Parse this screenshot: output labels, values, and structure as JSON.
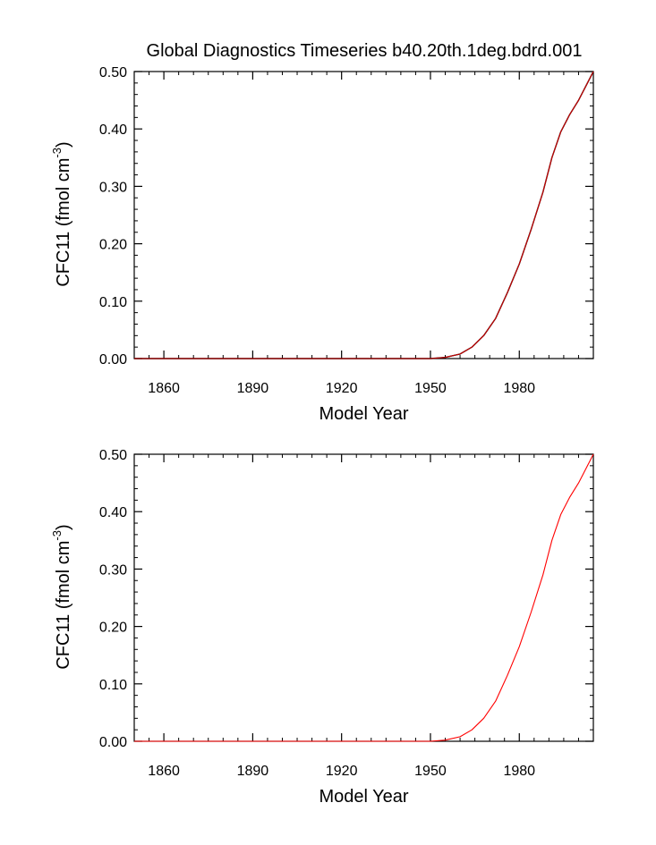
{
  "title": "Global Diagnostics Timeseries b40.20th.1deg.bdrd.001",
  "chart_data": [
    {
      "type": "line",
      "xlabel": "Model Year",
      "ylabel": "CFC11 (fmol cm",
      "ylabel_sup": "-3",
      "ylabel_close": ")",
      "xlim": [
        1850,
        2005
      ],
      "ylim": [
        0,
        0.5
      ],
      "xticks": [
        1860,
        1890,
        1920,
        1950,
        1980
      ],
      "xtick_labels": [
        "1860",
        "1890",
        "1920",
        "1950",
        "1980"
      ],
      "yticks": [
        0,
        0.1,
        0.2,
        0.3,
        0.4,
        0.5
      ],
      "ytick_labels": [
        "0.00",
        "0.10",
        "0.20",
        "0.30",
        "0.40",
        "0.50"
      ],
      "series": [
        {
          "color": "#000000",
          "x": [
            1850,
            1950,
            1955,
            1960,
            1964,
            1968,
            1972,
            1976,
            1980,
            1984,
            1988,
            1991,
            1994,
            1997,
            2000,
            2005
          ],
          "y": [
            0,
            0,
            0.002,
            0.008,
            0.02,
            0.04,
            0.07,
            0.115,
            0.165,
            0.225,
            0.29,
            0.35,
            0.395,
            0.425,
            0.45,
            0.5
          ]
        },
        {
          "color": "#cc0000",
          "x": [
            1850,
            1950,
            1955,
            1960,
            1964,
            1968,
            1972,
            1976,
            1980,
            1984,
            1988,
            1991,
            1994,
            1997,
            2000,
            2005
          ],
          "y": [
            0,
            0,
            0.002,
            0.008,
            0.02,
            0.04,
            0.07,
            0.115,
            0.165,
            0.225,
            0.29,
            0.35,
            0.395,
            0.425,
            0.45,
            0.5
          ]
        }
      ]
    },
    {
      "type": "line",
      "xlabel": "Model Year",
      "ylabel": "CFC11 (fmol cm",
      "ylabel_sup": "-3",
      "ylabel_close": ")",
      "xlim": [
        1850,
        2005
      ],
      "ylim": [
        0,
        0.5
      ],
      "xticks": [
        1860,
        1890,
        1920,
        1950,
        1980
      ],
      "xtick_labels": [
        "1860",
        "1890",
        "1920",
        "1950",
        "1980"
      ],
      "yticks": [
        0,
        0.1,
        0.2,
        0.3,
        0.4,
        0.5
      ],
      "ytick_labels": [
        "0.00",
        "0.10",
        "0.20",
        "0.30",
        "0.40",
        "0.50"
      ],
      "series": [
        {
          "color": "#ff0000",
          "x": [
            1850,
            1950,
            1955,
            1960,
            1964,
            1968,
            1972,
            1976,
            1980,
            1984,
            1988,
            1991,
            1994,
            1997,
            2000,
            2005
          ],
          "y": [
            0,
            0,
            0.002,
            0.008,
            0.02,
            0.04,
            0.07,
            0.115,
            0.165,
            0.225,
            0.29,
            0.35,
            0.395,
            0.425,
            0.45,
            0.5
          ]
        }
      ]
    }
  ]
}
